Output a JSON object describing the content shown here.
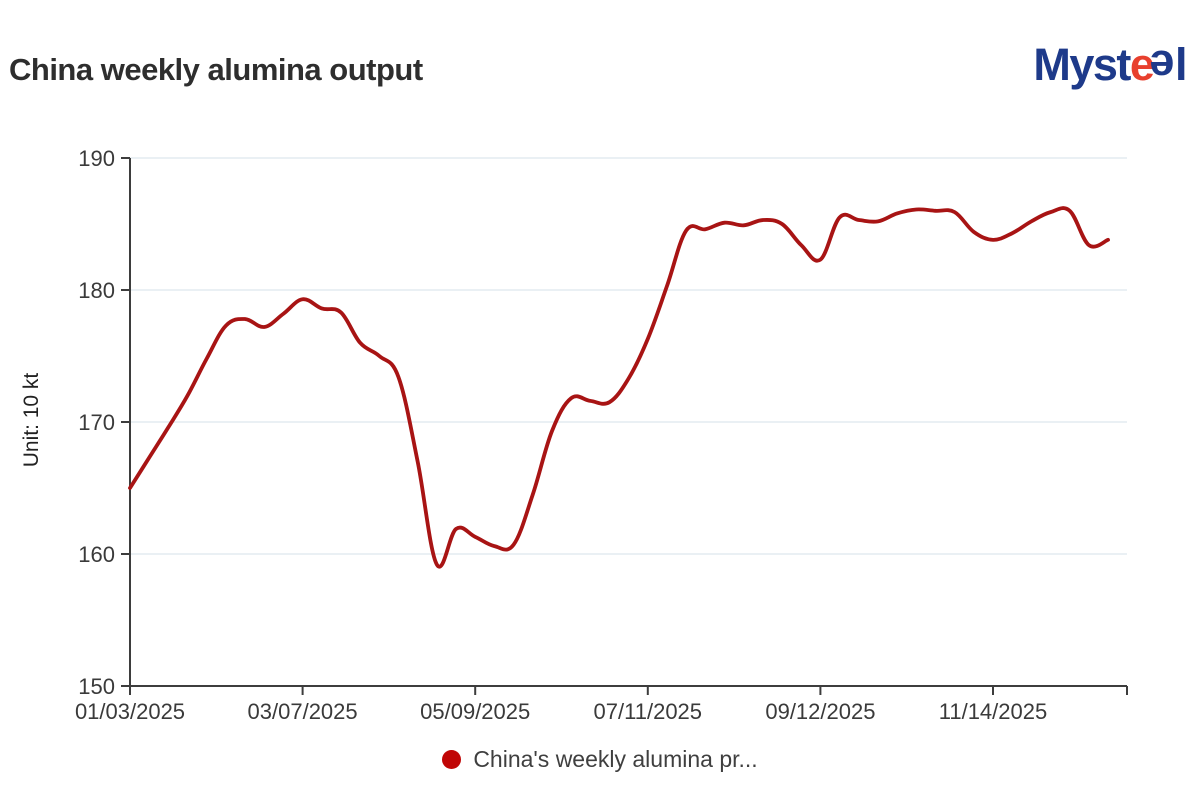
{
  "header": {
    "title": "China weekly alumina output",
    "logo": {
      "prefix": "Myst",
      "e_red": "e",
      "e_blue": "e",
      "suffix": "l"
    }
  },
  "chart_data": {
    "type": "line",
    "title": "China weekly alumina output",
    "unit_label": "Unit: 10 kt",
    "x": [
      "01/03/2025",
      "01/10/2025",
      "01/17/2025",
      "01/24/2025",
      "01/31/2025",
      "02/07/2025",
      "02/14/2025",
      "02/21/2025",
      "02/28/2025",
      "03/07/2025",
      "03/14/2025",
      "03/21/2025",
      "03/28/2025",
      "04/04/2025",
      "04/11/2025",
      "04/18/2025",
      "04/25/2025",
      "05/02/2025",
      "05/09/2025",
      "05/16/2025",
      "05/23/2025",
      "05/30/2025",
      "06/06/2025",
      "06/13/2025",
      "06/20/2025",
      "06/27/2025",
      "07/04/2025",
      "07/11/2025",
      "07/18/2025",
      "07/25/2025",
      "08/01/2025",
      "08/08/2025",
      "08/15/2025",
      "08/22/2025",
      "08/29/2025",
      "09/05/2025",
      "09/12/2025",
      "09/19/2025",
      "09/26/2025",
      "10/03/2025",
      "10/10/2025",
      "10/17/2025",
      "10/24/2025",
      "10/31/2025",
      "11/07/2025",
      "11/14/2025",
      "11/21/2025",
      "11/28/2025",
      "12/05/2025",
      "12/12/2025",
      "12/19/2025",
      "12/26/2025"
    ],
    "series": [
      {
        "name": "China's weekly alumina pr...",
        "color": "#a81414",
        "values": [
          165.0,
          167.3,
          169.6,
          172.0,
          174.8,
          177.3,
          177.8,
          177.2,
          178.2,
          179.3,
          178.6,
          178.3,
          176.0,
          175.0,
          173.4,
          167.0,
          159.2,
          161.9,
          161.3,
          160.6,
          160.7,
          164.5,
          169.3,
          171.8,
          171.6,
          171.5,
          173.3,
          176.3,
          180.3,
          184.5,
          184.6,
          185.1,
          184.9,
          185.3,
          185.0,
          183.4,
          182.3,
          185.5,
          185.3,
          185.2,
          185.8,
          186.1,
          186.0,
          185.9,
          184.4,
          183.8,
          184.3,
          185.2,
          185.9,
          186.0,
          183.4,
          183.8
        ]
      }
    ],
    "x_tick_labels": [
      "01/03/2025",
      "03/07/2025",
      "05/09/2025",
      "07/11/2025",
      "09/12/2025",
      "11/14/2025"
    ],
    "x_tick_indices": [
      0,
      9,
      18,
      27,
      36,
      45
    ],
    "y_ticks": [
      150,
      160,
      170,
      180,
      190
    ],
    "ylim": [
      150,
      190
    ],
    "grid": "horizontal",
    "line_smooth": true,
    "legend_position": "bottom"
  },
  "legend": {
    "label": "China's weekly alumina pr...",
    "dot_color": "#c00505"
  },
  "colors": {
    "line": "#a81414",
    "axis": "#3d3d3d",
    "grid": "#e4ebf1",
    "title_text": "#2e2e2e",
    "tick_text": "#3a3a3a",
    "logo_navy": "#1e3a8a",
    "logo_red": "#e8402e",
    "background": "#ffffff"
  }
}
